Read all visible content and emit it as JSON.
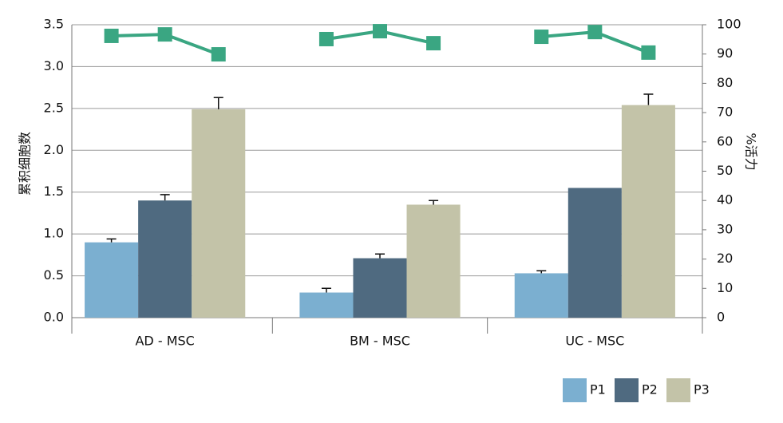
{
  "chart_data": {
    "type": "bar",
    "y_label": "累积细胞数",
    "y2_label": "%活力",
    "categories": [
      "AD - MSC",
      "BM - MSC",
      "UC - MSC"
    ],
    "series": [
      {
        "name": "P1",
        "color": "#7bafd0",
        "values": [
          0.9,
          0.3,
          0.53
        ],
        "errors": [
          0.04,
          0.05,
          0.03
        ]
      },
      {
        "name": "P2",
        "color": "#4f6a80",
        "values": [
          1.4,
          0.71,
          1.55
        ],
        "errors": [
          0.07,
          0.05,
          null
        ]
      },
      {
        "name": "P3",
        "color": "#c3c3a8",
        "values": [
          2.49,
          1.35,
          2.54
        ],
        "errors": [
          0.14,
          0.05,
          0.13
        ]
      }
    ],
    "line": {
      "axis": "y2",
      "color": "#3aa682",
      "values": [
        [
          96.2,
          96.7,
          89.9
        ],
        [
          95.1,
          97.8,
          93.7
        ],
        [
          95.9,
          97.5,
          90.5
        ]
      ]
    },
    "ylim": [
      0,
      3.5
    ],
    "yticks": [
      {
        "value": 0,
        "label": "0.0"
      },
      0.5,
      {
        "value": 1,
        "label": "1.0"
      },
      1.5,
      {
        "value": 2,
        "label": "2.0"
      },
      2.5,
      {
        "value": 3,
        "label": "3.0"
      },
      3.5
    ],
    "y2lim": [
      0,
      100
    ],
    "y2ticks": [
      0,
      10,
      20,
      30,
      40,
      50,
      60,
      70,
      80,
      90,
      100
    ],
    "grid": true,
    "legend": "bottom-right"
  }
}
